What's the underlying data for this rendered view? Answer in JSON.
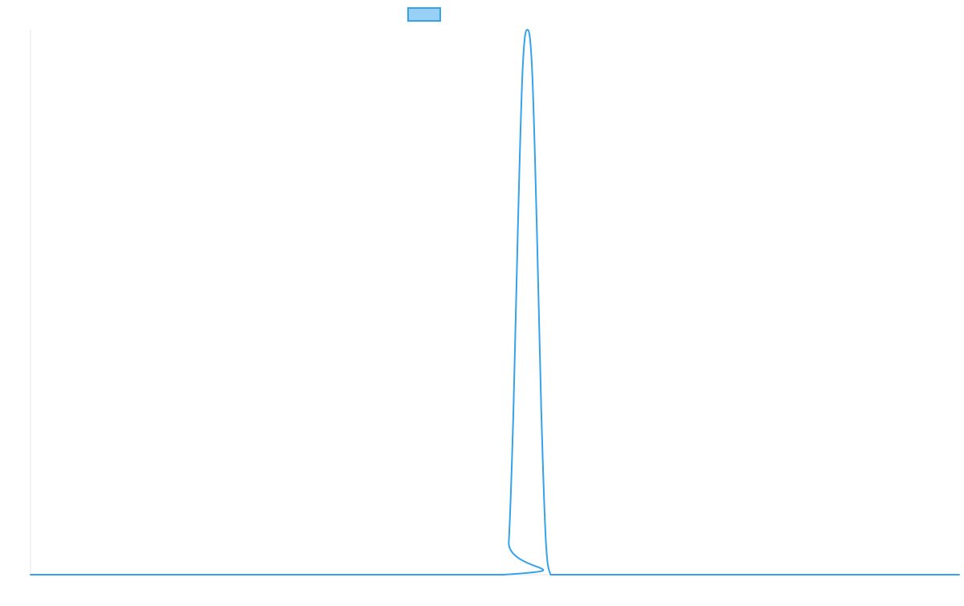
{
  "chart_data": {
    "type": "line",
    "title": "",
    "xlabel": "",
    "ylabel": "",
    "grid": false,
    "legend_position": "top-center",
    "xlim": [
      0,
      100
    ],
    "ylim": [
      0,
      1
    ],
    "series": [
      {
        "name": "",
        "color": "#36a2eb",
        "fill_color": "#9ad0f5",
        "x": [
          0,
          51,
          51.5,
          52,
          52.5,
          53,
          53.5,
          54,
          54.5,
          55,
          55.5,
          56,
          56.5,
          57,
          57.5,
          58,
          58.5,
          59,
          59.5,
          60,
          60.5,
          61,
          61.5,
          62,
          62.5,
          63,
          63.5,
          64,
          64.5,
          65,
          100
        ],
        "y": [
          0,
          0,
          0.06,
          0.3,
          0.65,
          0.93,
          1.0,
          0.93,
          0.65,
          0.3,
          0.06,
          0,
          0,
          0,
          0,
          0,
          0,
          0,
          0,
          0,
          0,
          0,
          0,
          0,
          0,
          0,
          0,
          0,
          0,
          0,
          0
        ]
      }
    ],
    "legend": [
      {
        "label": "",
        "color": "#36a2eb",
        "fill_color": "#9ad0f5"
      }
    ]
  }
}
